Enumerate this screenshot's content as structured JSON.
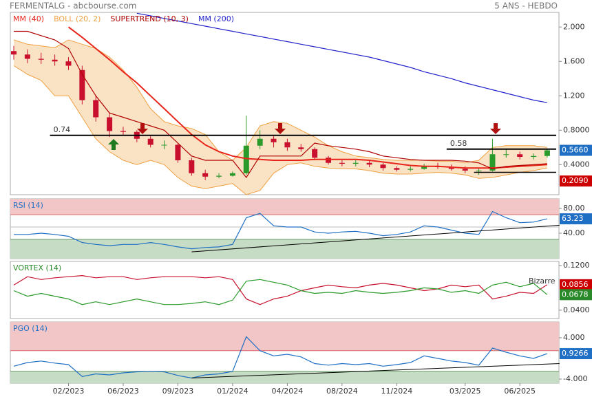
{
  "header": {
    "source": "FERMENTALG - abcbourse.com",
    "period": "5 ANS - HEBDO"
  },
  "chart_data": [
    {
      "type": "candlestick",
      "up_color": "#2a9a2a",
      "down_color": "#c8102e",
      "open": [
        1.72,
        1.68,
        1.63,
        1.62,
        1.6,
        1.5,
        1.15,
        0.95,
        0.79,
        0.78,
        0.7,
        0.63,
        0.63,
        0.45,
        0.3,
        0.26,
        0.27,
        0.3,
        0.62,
        0.7,
        0.66,
        0.6,
        0.58,
        0.48,
        0.42,
        0.41,
        0.42,
        0.4,
        0.36,
        0.34,
        0.35,
        0.38,
        0.37,
        0.35,
        0.33,
        0.33,
        0.52,
        0.52,
        0.49,
        0.5
      ],
      "high": [
        1.78,
        1.74,
        1.7,
        1.68,
        1.65,
        1.55,
        1.2,
        1.0,
        0.84,
        0.8,
        0.74,
        0.68,
        0.65,
        0.48,
        0.34,
        0.3,
        0.32,
        0.97,
        0.8,
        0.74,
        0.7,
        0.64,
        0.6,
        0.5,
        0.45,
        0.45,
        0.45,
        0.42,
        0.38,
        0.38,
        0.41,
        0.42,
        0.4,
        0.38,
        0.36,
        0.7,
        0.58,
        0.55,
        0.53,
        0.58
      ],
      "low": [
        1.62,
        1.58,
        1.57,
        1.55,
        1.5,
        1.1,
        0.9,
        0.72,
        0.74,
        0.66,
        0.6,
        0.58,
        0.42,
        0.27,
        0.22,
        0.24,
        0.26,
        0.28,
        0.58,
        0.6,
        0.56,
        0.55,
        0.45,
        0.4,
        0.38,
        0.38,
        0.37,
        0.33,
        0.32,
        0.32,
        0.34,
        0.35,
        0.33,
        0.3,
        0.28,
        0.32,
        0.48,
        0.46,
        0.46,
        0.48
      ],
      "close": [
        1.68,
        1.63,
        1.62,
        1.6,
        1.55,
        1.15,
        0.95,
        0.79,
        0.78,
        0.7,
        0.63,
        0.63,
        0.45,
        0.3,
        0.26,
        0.27,
        0.3,
        0.62,
        0.7,
        0.66,
        0.6,
        0.58,
        0.48,
        0.42,
        0.41,
        0.42,
        0.4,
        0.36,
        0.34,
        0.35,
        0.38,
        0.37,
        0.35,
        0.33,
        0.33,
        0.52,
        0.52,
        0.49,
        0.5,
        0.566
      ],
      "ylim": [
        0.05,
        2.17
      ],
      "yticks": [
        {
          "value": 2,
          "label": "2.000"
        },
        {
          "value": 1.6,
          "label": "1.600"
        },
        {
          "value": 1.2,
          "label": "1.200"
        },
        {
          "value": 0.8,
          "label": "0.8000"
        },
        {
          "value": 0.4,
          "label": "0.4000"
        }
      ],
      "series": [
        {
          "name": "MM (40)",
          "color": "#e8251a",
          "line_width": 2,
          "values": [
            null,
            null,
            null,
            null,
            2.0,
            1.88,
            1.75,
            1.62,
            1.48,
            1.35,
            1.2,
            1.05,
            0.9,
            0.75,
            0.63,
            0.55,
            0.5,
            0.47,
            0.46,
            0.45,
            0.45,
            0.45,
            0.46,
            0.46,
            0.46,
            0.46,
            0.45,
            0.43,
            0.41,
            0.39,
            0.38,
            0.38,
            0.37,
            0.36,
            0.36,
            0.36,
            0.37,
            0.38,
            0.39,
            0.4
          ]
        },
        {
          "name": "BOLL (20, 2)",
          "color": "#f0a040",
          "upper": [
            1.85,
            1.8,
            1.78,
            1.76,
            1.85,
            1.8,
            1.75,
            1.65,
            1.5,
            1.3,
            1.05,
            0.9,
            0.85,
            0.82,
            0.75,
            0.55,
            0.45,
            0.6,
            0.85,
            0.9,
            0.88,
            0.8,
            0.72,
            0.62,
            0.55,
            0.5,
            0.48,
            0.46,
            0.45,
            0.45,
            0.45,
            0.44,
            0.44,
            0.42,
            0.45,
            0.6,
            0.62,
            0.62,
            0.62,
            0.6
          ],
          "lower": [
            1.55,
            1.45,
            1.38,
            1.2,
            1.2,
            0.95,
            0.7,
            0.55,
            0.45,
            0.4,
            0.45,
            0.4,
            0.25,
            0.15,
            0.12,
            0.15,
            0.18,
            0.05,
            0.1,
            0.3,
            0.4,
            0.42,
            0.38,
            0.36,
            0.35,
            0.35,
            0.33,
            0.3,
            0.29,
            0.29,
            0.3,
            0.31,
            0.3,
            0.28,
            0.24,
            0.25,
            0.28,
            0.31,
            0.33,
            0.36
          ]
        },
        {
          "name": "SUPERTREND (10, 3)",
          "color": "#b00000",
          "values": [
            1.95,
            1.95,
            1.9,
            1.85,
            1.75,
            1.45,
            1.2,
            1.0,
            0.95,
            0.9,
            0.85,
            0.8,
            0.65,
            0.5,
            0.45,
            0.45,
            0.45,
            0.25,
            0.5,
            0.5,
            0.5,
            0.5,
            0.65,
            0.62,
            0.6,
            0.58,
            0.55,
            0.5,
            0.48,
            0.46,
            0.45,
            0.45,
            0.45,
            0.44,
            0.42,
            0.35,
            0.38,
            0.39,
            0.4,
            0.41
          ]
        },
        {
          "name": "MM (200)",
          "color": "#2222cc",
          "values": [
            null,
            null,
            null,
            null,
            null,
            null,
            null,
            null,
            null,
            2.16,
            2.13,
            2.1,
            2.07,
            2.04,
            2.01,
            1.98,
            1.95,
            1.92,
            1.89,
            1.86,
            1.83,
            1.8,
            1.77,
            1.74,
            1.71,
            1.68,
            1.65,
            1.61,
            1.57,
            1.53,
            1.48,
            1.44,
            1.4,
            1.35,
            1.31,
            1.27,
            1.23,
            1.19,
            1.15,
            1.12
          ]
        }
      ],
      "levels": [
        {
          "value": 0.74,
          "label": "0.74",
          "from": 3
        },
        {
          "value": 0.58,
          "label": "0.58",
          "from": 32
        },
        {
          "value": 0.31,
          "from": 34
        }
      ],
      "markers": [
        {
          "value": 0.566,
          "label": "0.5660",
          "color": "#1f6fc5"
        },
        {
          "value": 0.209,
          "label": "0.2090",
          "color": "#cc0000"
        }
      ]
    },
    {
      "type": "line",
      "title": "RSI (14)",
      "title_color": "#1f6fc5",
      "ylim": [
        -1,
        95.5
      ],
      "yticks": [
        {
          "value": 80,
          "label": "80.00"
        },
        {
          "value": 40,
          "label": "40.00"
        }
      ],
      "overbought": 70,
      "oversold": 30,
      "guides": [
        50
      ],
      "series": [
        {
          "color": "#1f6fc5",
          "values": [
            38,
            38,
            40,
            38,
            35,
            25,
            22,
            20,
            22,
            22,
            25,
            22,
            18,
            15,
            17,
            18,
            22,
            65,
            72,
            52,
            50,
            50,
            42,
            40,
            42,
            43,
            40,
            36,
            38,
            42,
            52,
            50,
            45,
            40,
            38,
            75,
            65,
            57,
            58,
            63.23
          ]
        }
      ],
      "trendline": {
        "from": [
          13,
          10
        ],
        "to": [
          39.9,
          53
        ]
      },
      "markers": [
        {
          "value": 63.23,
          "color": "#1f6fc5"
        }
      ]
    },
    {
      "type": "line",
      "title": "VORTEX (14)",
      "title_color": "#2a8a2a",
      "annotation": "Bizarre",
      "ylim": [
        0.025,
        0.1274
      ],
      "yticks": [
        {
          "value": 0.12,
          "label": "0.1200"
        },
        {
          "value": 0.04,
          "label": "0.0400"
        }
      ],
      "series": [
        {
          "color": "#c8102e",
          "values": [
            0.085,
            0.1,
            0.095,
            0.098,
            0.1,
            0.102,
            0.098,
            0.1,
            0.1,
            0.095,
            0.098,
            0.1,
            0.1,
            0.1,
            0.098,
            0.1,
            0.095,
            0.06,
            0.05,
            0.06,
            0.065,
            0.075,
            0.08,
            0.085,
            0.082,
            0.08,
            0.085,
            0.088,
            0.085,
            0.08,
            0.075,
            0.078,
            0.085,
            0.082,
            0.085,
            0.06,
            0.065,
            0.072,
            0.07,
            0.0856
          ]
        },
        {
          "color": "#2a9a2a",
          "values": [
            0.075,
            0.065,
            0.07,
            0.065,
            0.06,
            0.05,
            0.055,
            0.05,
            0.055,
            0.06,
            0.055,
            0.05,
            0.05,
            0.052,
            0.055,
            0.05,
            0.058,
            0.092,
            0.095,
            0.09,
            0.085,
            0.075,
            0.07,
            0.072,
            0.07,
            0.075,
            0.072,
            0.07,
            0.072,
            0.075,
            0.08,
            0.078,
            0.072,
            0.075,
            0.07,
            0.085,
            0.09,
            0.082,
            0.088,
            0.0678
          ]
        }
      ],
      "markers": [
        {
          "value": 0.0856,
          "label": "0.0856",
          "color": "#cc0000"
        },
        {
          "value": 0.0678,
          "label": "0.0678",
          "color": "#2a8a2a"
        }
      ]
    },
    {
      "type": "line",
      "title": "PGO (14)",
      "title_color": "#1f6fc5",
      "ylim": [
        -4.8,
        7.07
      ],
      "yticks": [
        {
          "value": 4,
          "label": "4.000"
        },
        {
          "value": -4,
          "label": "-4.000"
        }
      ],
      "overbought": 1.5,
      "oversold": -2.5,
      "categories": [
        null,
        null,
        null,
        null,
        "02/2023",
        null,
        null,
        null,
        "06/2023",
        null,
        null,
        null,
        "09/2023",
        null,
        null,
        null,
        "01/2024",
        null,
        null,
        null,
        "04/2024",
        null,
        null,
        null,
        "08/2024",
        null,
        null,
        null,
        "11/2024",
        null,
        null,
        null,
        null,
        "03/2025",
        null,
        null,
        null,
        "06/2025",
        null,
        null
      ],
      "series": [
        {
          "color": "#1f6fc5",
          "values": [
            -1.5,
            -0.8,
            -0.5,
            -0.9,
            -1.2,
            -3.5,
            -3.0,
            -3.2,
            -2.8,
            -2.6,
            -2.5,
            -2.6,
            -3.3,
            -3.8,
            -3.2,
            -3.0,
            -2.5,
            4.2,
            1.5,
            0.5,
            0.8,
            0.3,
            -1.0,
            -1.3,
            -1.0,
            -1.2,
            -1.0,
            -1.5,
            -1.2,
            -0.8,
            0.5,
            0.0,
            -0.5,
            -0.8,
            -1.3,
            2.0,
            1.2,
            0.5,
            0.0,
            0.9266
          ]
        }
      ],
      "trendline": {
        "from": [
          13,
          -3.8
        ],
        "to": [
          39.9,
          -1.0
        ]
      },
      "markers": [
        {
          "value": 0.9266,
          "color": "#1f6fc5"
        }
      ]
    }
  ]
}
